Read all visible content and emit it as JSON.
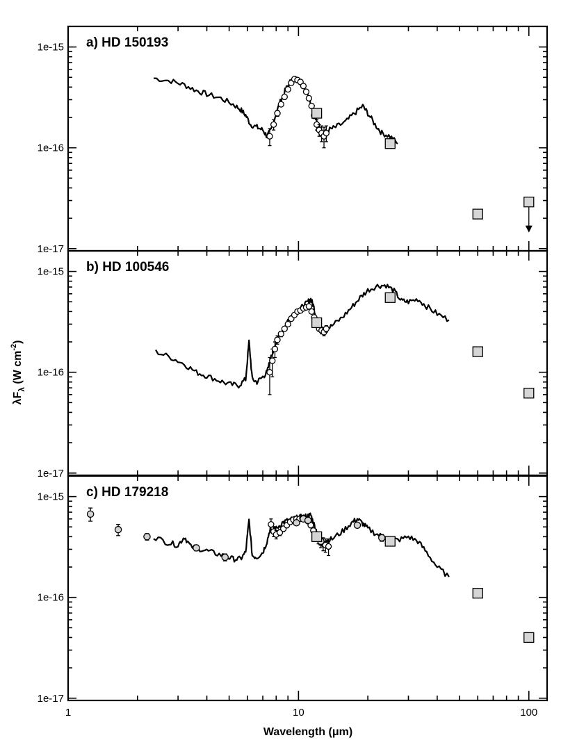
{
  "chart_data": {
    "type": "line",
    "xlabel": "Wavelength (μm)",
    "ylabel": "λF_λ (W cm^-2)",
    "xscale": "log",
    "yscale": "log",
    "xlim": [
      1,
      120
    ],
    "x_ticks": [
      1,
      10,
      100
    ],
    "x_tick_labels": [
      "1",
      "10",
      "100"
    ],
    "panels": [
      {
        "label": "a)",
        "title": "HD 150193",
        "ylim": [
          9.5e-18,
          1.6e-15
        ],
        "y_ticks": [
          "1e-15",
          "1e-16",
          "1e-17"
        ],
        "spectrum": {
          "x": [
            2.35,
            2.8,
            3.2,
            3.6,
            4.0,
            4.6,
            5.2,
            5.6,
            5.9,
            6.2,
            6.6,
            7.0,
            7.3,
            7.6,
            8.0,
            8.4,
            8.8,
            9.2,
            9.6,
            10.0,
            10.4,
            10.8,
            11.2,
            11.6,
            12.0,
            12.4,
            12.8,
            13.5,
            14.5,
            16.0,
            17.5,
            19.0,
            20.0,
            21.5,
            23.0,
            25.0,
            27.0
          ],
          "y": [
            4.9e-16,
            4.6e-16,
            4.2e-16,
            3.7e-16,
            3.4e-16,
            3.1e-16,
            2.7e-16,
            2.4e-16,
            2.1e-16,
            1.7e-16,
            1.6e-16,
            1.5e-16,
            1.3e-16,
            1.5e-16,
            2.2e-16,
            3e-16,
            3.8e-16,
            4.5e-16,
            4.9e-16,
            4.7e-16,
            4.3e-16,
            3.7e-16,
            3e-16,
            2.3e-16,
            1.8e-16,
            1.5e-16,
            1.4e-16,
            1.5e-16,
            1.6e-16,
            1.8e-16,
            2.2e-16,
            2.6e-16,
            2.2e-16,
            1.7e-16,
            1.4e-16,
            1.3e-16,
            1.1e-16
          ]
        },
        "ground_phot": {
          "x": [
            7.5,
            7.8,
            8.1,
            8.4,
            8.7,
            9.0,
            9.3,
            9.6,
            9.9,
            10.2,
            10.5,
            10.8,
            11.1,
            11.4,
            11.7,
            12.0,
            12.3,
            12.6,
            12.9,
            13.2
          ],
          "y": [
            1.3e-16,
            1.7e-16,
            2.2e-16,
            2.7e-16,
            3.2e-16,
            3.8e-16,
            4.4e-16,
            4.8e-16,
            4.7e-16,
            4.5e-16,
            4.1e-16,
            3.6e-16,
            3.1e-16,
            2.6e-16,
            2.1e-16,
            1.7e-16,
            1.5e-16,
            1.4e-16,
            1.3e-16,
            1.4e-16
          ],
          "yerr": [
            2.5e-17,
            2e-17,
            1.5e-17,
            1e-17,
            1e-17,
            1e-17,
            1e-17,
            1e-17,
            1e-17,
            1e-17,
            1e-17,
            1e-17,
            1e-17,
            1e-17,
            1.5e-17,
            2e-17,
            2e-17,
            2.5e-17,
            3e-17,
            2.5e-17
          ]
        },
        "iras": {
          "x": [
            12,
            25,
            60,
            100
          ],
          "y": [
            2.2e-16,
            1.1e-16,
            2.2e-17,
            2.9e-17
          ],
          "upper_limit": [
            false,
            false,
            false,
            true
          ]
        }
      },
      {
        "label": "b)",
        "title": "HD 100546",
        "ylim": [
          9.5e-18,
          1.6e-15
        ],
        "y_ticks": [
          "1e-15",
          "1e-16",
          "1e-17"
        ],
        "spectrum": {
          "x": [
            2.4,
            2.8,
            3.2,
            3.6,
            4.0,
            4.5,
            5.0,
            5.5,
            5.9,
            6.1,
            6.3,
            6.6,
            7.0,
            7.3,
            7.6,
            8.0,
            8.5,
            9.0,
            9.5,
            10.0,
            10.5,
            11.0,
            11.3,
            11.6,
            12.0,
            12.5,
            13.0,
            14.0,
            15.5,
            17.0,
            18.5,
            20.0,
            22.0,
            24.0,
            26.0,
            28.0,
            30.0,
            33.0,
            36.0,
            40.0,
            45.0
          ],
          "y": [
            1.6e-16,
            1.4e-16,
            1.2e-16,
            1e-16,
            9.2e-17,
            8.3e-17,
            7.6e-17,
            7.4e-17,
            8.5e-17,
            2e-16,
            8.5e-17,
            8e-17,
            9e-17,
            1e-16,
            1.4e-16,
            2e-16,
            2.6e-16,
            3.3e-16,
            3.8e-16,
            4.2e-16,
            4.5e-16,
            5e-16,
            5.3e-16,
            4.6e-16,
            3.3e-16,
            2.7e-16,
            2.6e-16,
            2.9e-16,
            3.5e-16,
            4.4e-16,
            5.5e-16,
            6.5e-16,
            7.2e-16,
            7.3e-16,
            6.4e-16,
            5.1e-16,
            5e-16,
            5.3e-16,
            4.5e-16,
            3.8e-16,
            3.3e-16
          ]
        },
        "ground_phot": {
          "x": [
            7.5,
            7.7,
            7.9,
            8.1,
            8.4,
            8.7,
            9.0,
            9.3,
            9.6,
            9.9,
            10.2,
            10.5,
            10.8,
            11.1,
            11.4,
            11.7,
            12.0,
            12.3,
            12.6,
            12.9,
            13.2
          ],
          "y": [
            1e-16,
            1.3e-16,
            1.7e-16,
            2.1e-16,
            2.4e-16,
            2.7e-16,
            3e-16,
            3.4e-16,
            3.7e-16,
            4e-16,
            4.1e-16,
            4.3e-16,
            4.4e-16,
            4.5e-16,
            4e-16,
            3.5e-16,
            3e-16,
            2.7e-16,
            2.6e-16,
            2.5e-16,
            2.7e-16
          ],
          "yerr": [
            4e-17,
            4e-17,
            3e-17,
            2e-17,
            1.5e-17,
            1e-17,
            1e-17,
            1e-17,
            1e-17,
            1e-17,
            1e-17,
            1e-17,
            1e-17,
            1e-17,
            1e-17,
            1e-17,
            1.5e-17,
            1.5e-17,
            2e-17,
            2e-17,
            2e-17
          ]
        },
        "iras": {
          "x": [
            12,
            25,
            60,
            100
          ],
          "y": [
            3.1e-16,
            5.5e-16,
            1.6e-16,
            6.2e-17
          ],
          "upper_limit": [
            false,
            false,
            false,
            false
          ]
        }
      },
      {
        "label": "c)",
        "title": "HD 179218",
        "ylim": [
          9.5e-18,
          1.6e-15
        ],
        "y_ticks": [
          "1e-15",
          "1e-16",
          "1e-17"
        ],
        "spectrum": {
          "x": [
            2.35,
            2.7,
            3.0,
            3.2,
            3.4,
            3.8,
            4.2,
            4.7,
            5.2,
            5.6,
            5.9,
            6.1,
            6.3,
            6.6,
            7.0,
            7.3,
            7.6,
            8.0,
            8.5,
            9.0,
            9.5,
            10.0,
            10.5,
            11.0,
            11.3,
            11.6,
            12.0,
            12.5,
            13.0,
            14.0,
            15.5,
            17.0,
            18.0,
            19.0,
            20.0,
            22.0,
            24.0,
            27.0,
            30.0,
            33.0,
            36.0,
            40.0,
            45.0
          ],
          "y": [
            4e-16,
            3.5e-16,
            3.3e-16,
            4e-16,
            3.2e-16,
            3e-16,
            2.8e-16,
            2.6e-16,
            2.4e-16,
            2.4e-16,
            2.8e-16,
            5.8e-16,
            2.6e-16,
            2.5e-16,
            2.8e-16,
            3.6e-16,
            5.2e-16,
            4.8e-16,
            5.5e-16,
            5.8e-16,
            6e-16,
            6.2e-16,
            6.3e-16,
            6.4e-16,
            6.6e-16,
            5.5e-16,
            4.5e-16,
            3.8e-16,
            3.6e-16,
            3.8e-16,
            4.5e-16,
            5.5e-16,
            6e-16,
            5.4e-16,
            4.8e-16,
            4.2e-16,
            3.9e-16,
            3.7e-16,
            4e-16,
            3.6e-16,
            2.8e-16,
            2e-16,
            1.6e-16
          ]
        },
        "ground_phot": {
          "x": [
            7.6,
            7.8,
            8.0,
            8.3,
            8.6,
            8.9,
            9.2,
            9.5,
            9.8,
            10.1,
            10.4,
            10.7,
            11.0,
            11.3,
            11.6,
            11.9,
            12.2,
            12.5,
            12.8,
            13.1,
            13.5
          ],
          "y": [
            5.3e-16,
            4.5e-16,
            4.2e-16,
            4.4e-16,
            4.8e-16,
            5.2e-16,
            5.6e-16,
            5.9e-16,
            6e-16,
            6e-16,
            6.1e-16,
            6e-16,
            5.7e-16,
            5.2e-16,
            4.6e-16,
            4.1e-16,
            3.8e-16,
            3.5e-16,
            3.4e-16,
            3.3e-16,
            3.2e-16
          ],
          "yerr": [
            7e-17,
            5e-17,
            4e-17,
            3e-17,
            3e-17,
            3e-17,
            3e-17,
            3e-17,
            3e-17,
            3e-17,
            3e-17,
            3e-17,
            3e-17,
            3e-17,
            3e-17,
            3e-17,
            4e-17,
            4e-17,
            5e-17,
            5e-17,
            6e-17
          ]
        },
        "broadband": {
          "x": [
            1.25,
            1.65,
            2.2,
            3.6,
            4.8,
            9.8,
            10.5,
            11.0,
            12.5,
            18.0,
            23.0
          ],
          "y": [
            6.7e-16,
            4.7e-16,
            4e-16,
            3.1e-16,
            2.5e-16,
            5.5e-16,
            6e-16,
            5.8e-16,
            3.6e-16,
            5.2e-16,
            3.9e-16
          ],
          "yerr": [
            1e-16,
            6e-17,
            3e-17,
            2e-17,
            2e-17,
            3e-17,
            3e-17,
            3e-17,
            3e-17,
            3e-17,
            3e-17
          ]
        },
        "iras": {
          "x": [
            12,
            25,
            60,
            100
          ],
          "y": [
            4e-16,
            3.6e-16,
            1.1e-16,
            4e-17
          ],
          "upper_limit": [
            false,
            false,
            false,
            false
          ]
        }
      }
    ]
  }
}
